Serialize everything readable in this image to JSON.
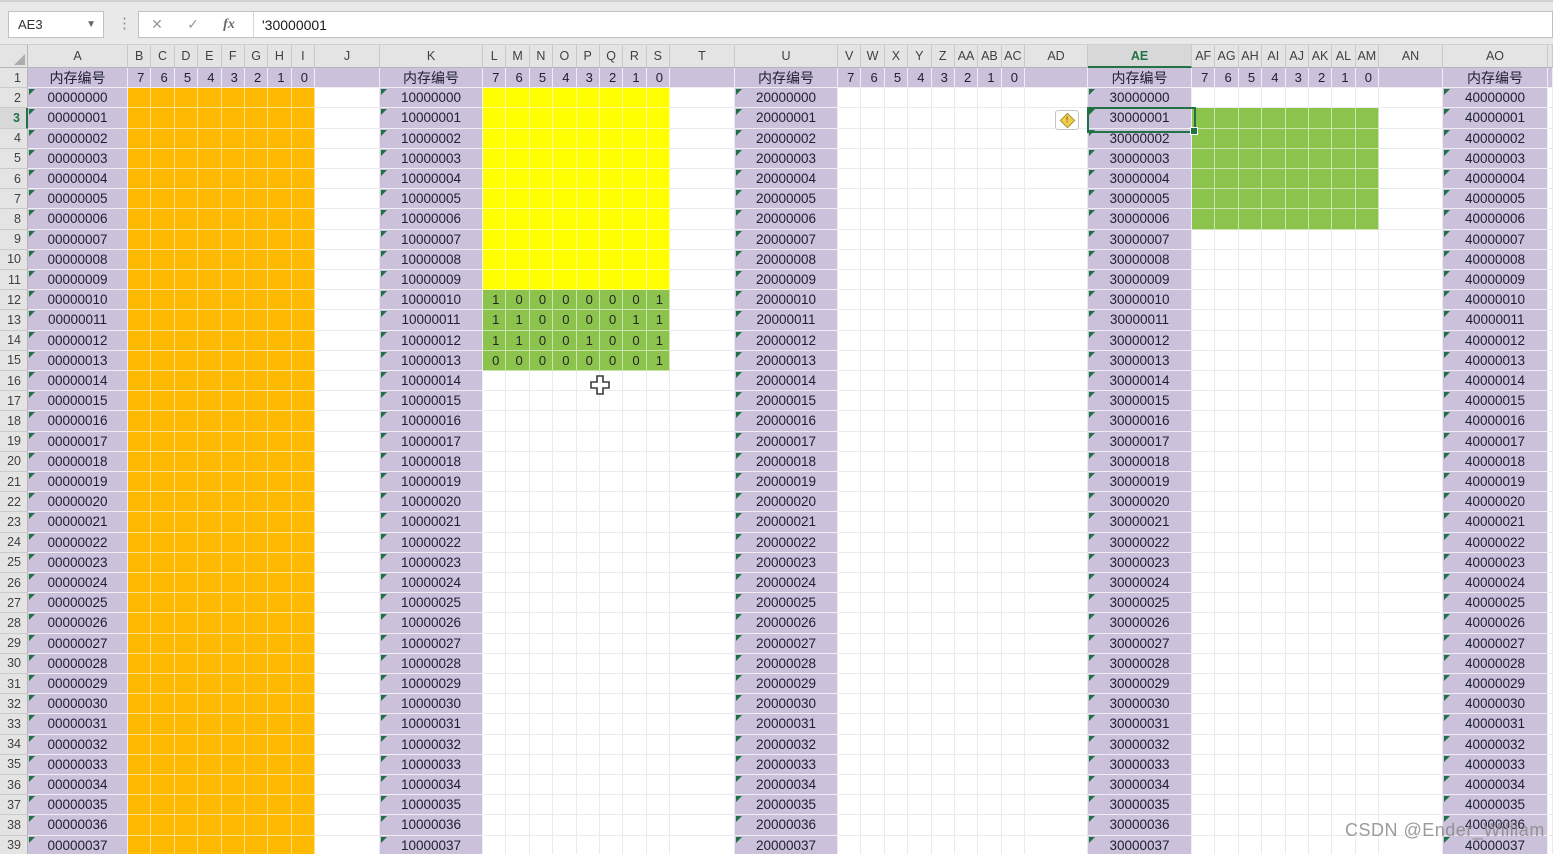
{
  "app": {
    "name_box": "AE3",
    "formula_value": "'30000001",
    "cancel_label": "✕",
    "enter_label": "✓",
    "fx_label": "fx"
  },
  "sheet": {
    "header_label": "内存编号",
    "bit_headers": [
      "7",
      "6",
      "5",
      "4",
      "3",
      "2",
      "1",
      "0"
    ],
    "column_letters": [
      "A",
      "B",
      "C",
      "D",
      "E",
      "F",
      "G",
      "H",
      "I",
      "J",
      "K",
      "L",
      "M",
      "N",
      "O",
      "P",
      "Q",
      "R",
      "S",
      "T",
      "U",
      "V",
      "W",
      "X",
      "Y",
      "Z",
      "AA",
      "AB",
      "AC",
      "AD",
      "AE",
      "AF",
      "AG",
      "AH",
      "AI",
      "AJ",
      "AK",
      "AL",
      "AM",
      "AN",
      "AO"
    ],
    "row_numbers": [
      "1",
      "2",
      "3",
      "4",
      "5",
      "6",
      "7",
      "8",
      "9",
      "10",
      "11",
      "12",
      "13",
      "14",
      "15",
      "16",
      "17",
      "18",
      "19",
      "20",
      "21",
      "22",
      "23",
      "24",
      "25",
      "26",
      "27",
      "28",
      "29",
      "30",
      "31",
      "32",
      "33",
      "34",
      "35",
      "36",
      "37",
      "38",
      "39"
    ],
    "selected": {
      "cell_ref": "AE3",
      "column": "AE",
      "row": "3",
      "value": "30000001"
    },
    "colors": {
      "orange": "#FFB900",
      "yellow": "#FFFF00",
      "green": "#8CC34D",
      "purple": "#CBC1DA",
      "selection": "#217346"
    },
    "groups": [
      {
        "name": "bank-0",
        "addresses": [
          "00000000",
          "00000001",
          "00000002",
          "00000003",
          "00000004",
          "00000005",
          "00000006",
          "00000007",
          "00000008",
          "00000009",
          "00000010",
          "00000011",
          "00000012",
          "00000013",
          "00000014",
          "00000015",
          "00000016",
          "00000017",
          "00000018",
          "00000019",
          "00000020",
          "00000021",
          "00000022",
          "00000023",
          "00000024",
          "00000025",
          "00000026",
          "00000027",
          "00000028",
          "00000029",
          "00000030",
          "00000031",
          "00000032",
          "00000033",
          "00000034",
          "00000035",
          "00000036",
          "00000037"
        ],
        "fills": [
          {
            "from": 0,
            "to": 37,
            "color": "orange"
          }
        ],
        "bit_values": {}
      },
      {
        "name": "bank-1",
        "addresses": [
          "10000000",
          "10000001",
          "10000002",
          "10000003",
          "10000004",
          "10000005",
          "10000006",
          "10000007",
          "10000008",
          "10000009",
          "10000010",
          "10000011",
          "10000012",
          "10000013",
          "10000014",
          "10000015",
          "10000016",
          "10000017",
          "10000018",
          "10000019",
          "10000020",
          "10000021",
          "10000022",
          "10000023",
          "10000024",
          "10000025",
          "10000026",
          "10000027",
          "10000028",
          "10000029",
          "10000030",
          "10000031",
          "10000032",
          "10000033",
          "10000034",
          "10000035",
          "10000036",
          "10000037"
        ],
        "fills": [
          {
            "from": 0,
            "to": 9,
            "color": "yellow"
          },
          {
            "from": 10,
            "to": 13,
            "color": "green"
          }
        ],
        "bit_values": {
          "10": [
            "1",
            "0",
            "0",
            "0",
            "0",
            "0",
            "0",
            "1"
          ],
          "11": [
            "1",
            "1",
            "0",
            "0",
            "0",
            "0",
            "1",
            "1"
          ],
          "12": [
            "1",
            "1",
            "0",
            "0",
            "1",
            "0",
            "0",
            "1"
          ],
          "13": [
            "0",
            "0",
            "0",
            "0",
            "0",
            "0",
            "0",
            "1"
          ]
        }
      },
      {
        "name": "bank-2",
        "addresses": [
          "20000000",
          "20000001",
          "20000002",
          "20000003",
          "20000004",
          "20000005",
          "20000006",
          "20000007",
          "20000008",
          "20000009",
          "20000010",
          "20000011",
          "20000012",
          "20000013",
          "20000014",
          "20000015",
          "20000016",
          "20000017",
          "20000018",
          "20000019",
          "20000020",
          "20000021",
          "20000022",
          "20000023",
          "20000024",
          "20000025",
          "20000026",
          "20000027",
          "20000028",
          "20000029",
          "20000030",
          "20000031",
          "20000032",
          "20000033",
          "20000034",
          "20000035",
          "20000036",
          "20000037"
        ],
        "fills": [],
        "bit_values": {}
      },
      {
        "name": "bank-3",
        "addresses": [
          "30000000",
          "30000001",
          "30000002",
          "30000003",
          "30000004",
          "30000005",
          "30000006",
          "30000007",
          "30000008",
          "30000009",
          "30000010",
          "30000011",
          "30000012",
          "30000013",
          "30000014",
          "30000015",
          "30000016",
          "30000017",
          "30000018",
          "30000019",
          "30000020",
          "30000021",
          "30000022",
          "30000023",
          "30000024",
          "30000025",
          "30000026",
          "30000027",
          "30000028",
          "30000029",
          "30000030",
          "30000031",
          "30000032",
          "30000033",
          "30000034",
          "30000035",
          "30000036",
          "30000037"
        ],
        "fills": [
          {
            "from": 1,
            "to": 6,
            "color": "green"
          }
        ],
        "bit_values": {}
      },
      {
        "name": "bank-4",
        "addresses": [
          "40000000",
          "40000001",
          "40000002",
          "40000003",
          "40000004",
          "40000005",
          "40000006",
          "40000007",
          "40000008",
          "40000009",
          "40000010",
          "40000011",
          "40000012",
          "40000013",
          "40000014",
          "40000015",
          "40000016",
          "40000017",
          "40000018",
          "40000019",
          "40000020",
          "40000021",
          "40000022",
          "40000023",
          "40000024",
          "40000025",
          "40000026",
          "40000027",
          "40000028",
          "40000029",
          "40000030",
          "40000031",
          "40000032",
          "40000033",
          "40000034",
          "40000035",
          "40000036",
          "40000037"
        ],
        "fills": [],
        "bit_values": {}
      }
    ]
  },
  "watermark": "CSDN @Ender_William"
}
